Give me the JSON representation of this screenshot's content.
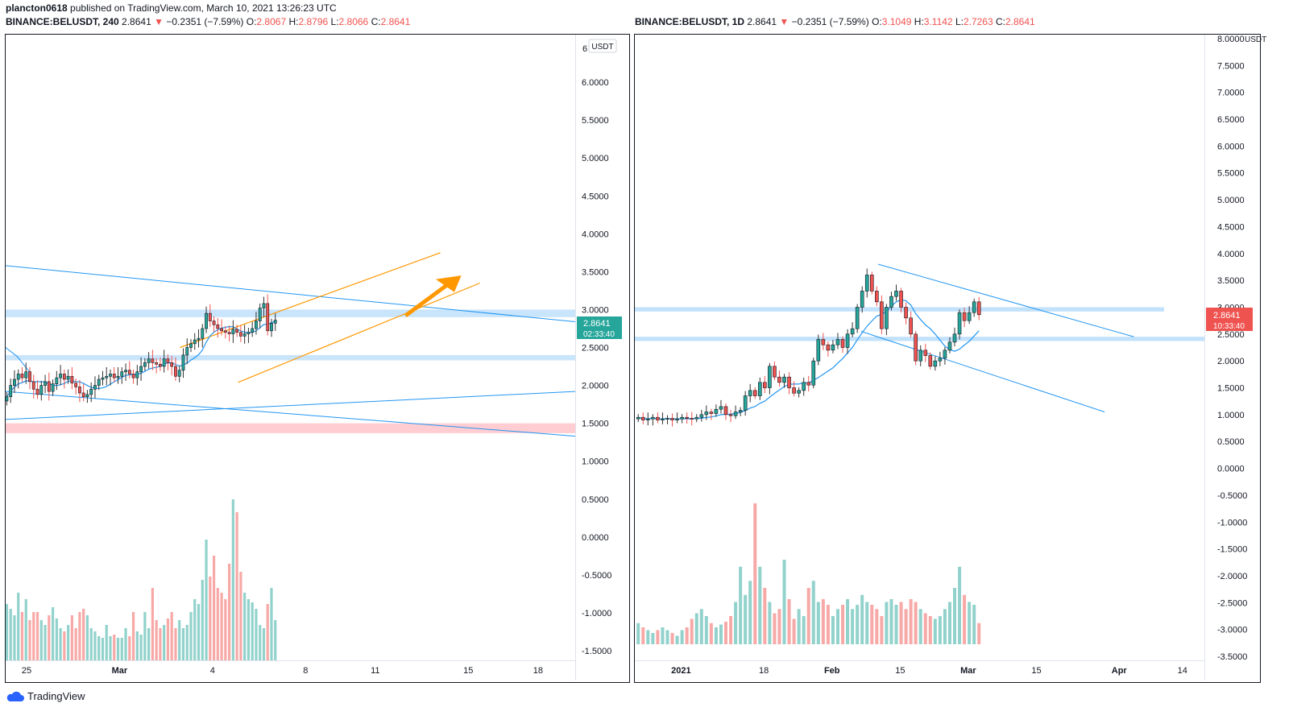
{
  "header": {
    "publisher": "plancton0618",
    "published_text": "published on TradingView.com, March 10, 2021 13:26:23 UTC"
  },
  "left_chart": {
    "symbol": "BINANCE:BELUSDT, 240",
    "last": "2.8641",
    "change": "−0.2351 (−7.59%)",
    "ohlc": {
      "O": "2.8067",
      "H": "2.8796",
      "L": "2.8066",
      "C": "2.8641"
    },
    "currency_badge": "USDT",
    "price_tag": "2.8641",
    "countdown": "02:33:40"
  },
  "right_chart": {
    "symbol": "BINANCE:BELUSDT, 1D",
    "last": "2.8641",
    "change": "−0.2351 (−7.59%)",
    "ohlc": {
      "O": "3.1049",
      "H": "3.1142",
      "L": "2.7263",
      "C": "2.8641"
    },
    "price_tag": "2.8641",
    "countdown": "10:33:40"
  },
  "footer": {
    "brand": "TradingView"
  },
  "chart_data": [
    {
      "type": "candlestick",
      "id": "left",
      "timeframe": "240",
      "ylim": [
        -1.5,
        6.5
      ],
      "y_ticks": [
        "6.0000",
        "5.5000",
        "5.0000",
        "4.5000",
        "4.0000",
        "3.5000",
        "3.0000",
        "2.5000",
        "2.0000",
        "1.5000",
        "1.0000",
        "0.5000",
        "0.0000",
        "-0.5000",
        "-1.0000",
        "-1.5000"
      ],
      "y_tick_values": [
        6.0,
        5.5,
        5.0,
        4.5,
        4.0,
        3.5,
        3.0,
        2.5,
        2.0,
        1.5,
        1.0,
        0.5,
        0.0,
        -0.5,
        -1.0,
        -1.5
      ],
      "x_ticks": [
        "25",
        "Mar",
        "4",
        "8",
        "11",
        "15",
        "18"
      ],
      "x_tick_days": [
        0,
        4,
        8,
        12,
        15,
        19,
        22
      ],
      "x_range_days": [
        -0.9,
        23.6
      ],
      "close": [
        1.85,
        2.0,
        2.08,
        2.15,
        2.1,
        2.18,
        2.05,
        1.95,
        1.88,
        2.0,
        2.05,
        1.92,
        2.02,
        2.1,
        2.15,
        2.08,
        2.12,
        2.03,
        1.98,
        1.9,
        1.85,
        1.88,
        1.95,
        2.0,
        2.08,
        2.1,
        2.12,
        2.15,
        2.1,
        2.12,
        2.18,
        2.2,
        2.15,
        2.1,
        2.18,
        2.25,
        2.3,
        2.35,
        2.3,
        2.28,
        2.25,
        2.35,
        2.3,
        2.25,
        2.12,
        2.2,
        2.4,
        2.5,
        2.55,
        2.6,
        2.62,
        2.75,
        2.95,
        2.85,
        2.8,
        2.75,
        2.72,
        2.7,
        2.68,
        2.74,
        2.7,
        2.65,
        2.68,
        2.7,
        2.75,
        2.85,
        3.02,
        3.08,
        2.72,
        2.82,
        2.86
      ],
      "volume_max_ratio": 1.0,
      "volume": [
        0.35,
        0.32,
        0.28,
        0.42,
        0.3,
        0.38,
        0.25,
        0.3,
        0.3,
        0.25,
        0.22,
        0.28,
        0.33,
        0.26,
        0.2,
        0.18,
        0.22,
        0.28,
        0.2,
        0.3,
        0.32,
        0.28,
        0.2,
        0.18,
        0.15,
        0.14,
        0.22,
        0.15,
        0.16,
        0.14,
        0.14,
        0.2,
        0.15,
        0.3,
        0.18,
        0.16,
        0.3,
        0.2,
        0.45,
        0.25,
        0.2,
        0.22,
        0.26,
        0.3,
        0.2,
        0.25,
        0.2,
        0.22,
        0.3,
        0.38,
        0.35,
        0.5,
        0.75,
        0.52,
        0.65,
        0.45,
        0.42,
        0.38,
        0.6,
        1.0,
        0.92,
        0.55,
        0.42,
        0.38,
        0.36,
        0.32,
        0.22,
        0.2,
        0.35,
        0.45,
        0.25
      ]
    },
    {
      "type": "candlestick",
      "id": "right",
      "timeframe": "1D",
      "ylim": [
        -3.5,
        8.0
      ],
      "y_ticks": [
        "8.0000",
        "7.5000",
        "7.0000",
        "6.5000",
        "6.0000",
        "5.5000",
        "5.0000",
        "4.5000",
        "4.0000",
        "3.5000",
        "3.0000",
        "2.5000",
        "2.0000",
        "1.5000",
        "1.0000",
        "0.5000",
        "0.0000",
        "-0.5000",
        "-1.0000",
        "-1.5000",
        "-2.0000",
        "-2.5000",
        "-3.0000",
        "-3.5000"
      ],
      "y_tick_values": [
        8.0,
        7.5,
        7.0,
        6.5,
        6.0,
        5.5,
        5.0,
        4.5,
        4.0,
        3.5,
        3.0,
        2.5,
        2.0,
        1.5,
        1.0,
        0.5,
        0.0,
        -0.5,
        -1.0,
        -1.5,
        -2.0,
        -2.5,
        -3.0,
        -3.5
      ],
      "x_ticks": [
        "2021",
        "18",
        "Feb",
        "15",
        "Mar",
        "15",
        "Apr",
        "14"
      ],
      "x_tick_days": [
        0,
        17,
        31,
        45,
        59,
        73,
        90,
        103
      ],
      "x_range_days": [
        -9.5,
        107.5
      ],
      "close": [
        0.95,
        0.9,
        0.92,
        0.95,
        0.9,
        0.92,
        0.93,
        0.9,
        0.92,
        0.95,
        0.93,
        0.92,
        0.95,
        1.0,
        1.05,
        1.02,
        1.1,
        1.15,
        1.0,
        0.98,
        1.05,
        1.08,
        1.35,
        1.45,
        1.35,
        1.6,
        1.5,
        1.9,
        1.7,
        1.6,
        1.7,
        1.5,
        1.4,
        1.45,
        1.6,
        1.55,
        2.0,
        2.4,
        2.3,
        2.2,
        2.3,
        2.4,
        2.25,
        2.5,
        2.6,
        3.0,
        3.3,
        3.6,
        3.3,
        3.1,
        2.6,
        3.0,
        3.2,
        3.3,
        3.0,
        2.8,
        2.5,
        2.0,
        2.2,
        2.1,
        1.9,
        2.0,
        2.05,
        2.2,
        2.35,
        2.5,
        2.9,
        2.75,
        2.9,
        3.1,
        2.86
      ],
      "volume_max_ratio": 1.0,
      "volume": [
        0.15,
        0.12,
        0.1,
        0.08,
        0.1,
        0.12,
        0.1,
        0.08,
        0.06,
        0.1,
        0.12,
        0.18,
        0.22,
        0.25,
        0.2,
        0.15,
        0.12,
        0.14,
        0.16,
        0.2,
        0.3,
        0.55,
        0.35,
        0.45,
        1.0,
        0.55,
        0.4,
        0.3,
        0.22,
        0.25,
        0.6,
        0.32,
        0.18,
        0.25,
        0.2,
        0.4,
        0.45,
        0.3,
        0.32,
        0.28,
        0.2,
        0.25,
        0.28,
        0.32,
        0.25,
        0.28,
        0.35,
        0.3,
        0.28,
        0.25,
        0.2,
        0.3,
        0.32,
        0.28,
        0.3,
        0.25,
        0.32,
        0.3,
        0.25,
        0.22,
        0.2,
        0.18,
        0.2,
        0.25,
        0.3,
        0.4,
        0.55,
        0.35,
        0.3,
        0.28,
        0.15
      ]
    }
  ]
}
